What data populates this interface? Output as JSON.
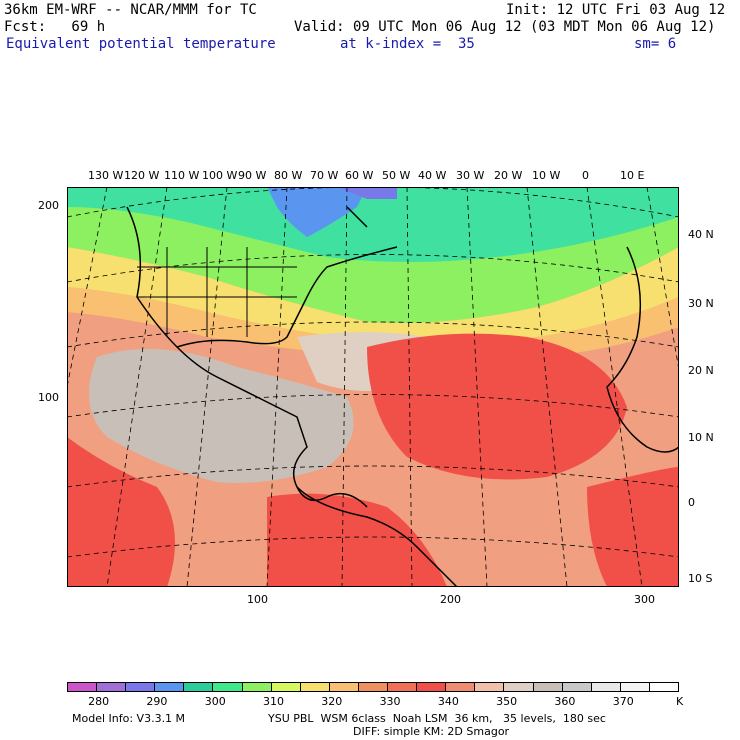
{
  "header": {
    "left_line1": "36km EM-WRF -- NCAR/MMM for TC",
    "left_line2": "Fcst:   69 h",
    "right_line1": "Init: 12 UTC Fri 03 Aug 12",
    "right_line2": "Valid: 09 UTC Mon 06 Aug 12 (03 MDT Mon 06 Aug 12)",
    "field_name": "Equivalent potential temperature",
    "level": "at k-index =  35",
    "smoothing": "sm= 6"
  },
  "map": {
    "top_lon_labels": [
      "130 W",
      "120 W",
      "110 W",
      "100 W",
      "90 W",
      "80 W",
      "70 W",
      "60 W",
      "50 W",
      "40 W",
      "30 W",
      "20 W",
      "10 W",
      "0",
      "10 E"
    ],
    "right_lat_labels": [
      "40 N",
      "30 N",
      "20 N",
      "10 N",
      "0",
      "10 S"
    ],
    "left_y_labels": [
      "200",
      "100"
    ],
    "bottom_x_labels": [
      "100",
      "200",
      "300"
    ]
  },
  "colorbar": {
    "unit": "K",
    "labels": [
      "280",
      "290",
      "300",
      "310",
      "320",
      "330",
      "340",
      "350",
      "360",
      "370"
    ],
    "colors": [
      "#cc55cc",
      "#a070d8",
      "#7878e8",
      "#5a96f0",
      "#2ecc9c",
      "#40e88c",
      "#8cf060",
      "#d8f860",
      "#f8e070",
      "#f8c070",
      "#f09060",
      "#f07058",
      "#f05048",
      "#f08c70",
      "#f0c0a8",
      "#e0d0c4",
      "#c8c0b8",
      "#c8c8c8",
      "#e8e8e8",
      "#f4f4f4",
      "#ffffff"
    ]
  },
  "footer": {
    "model_info": "Model Info: V3.3.1 M",
    "physics_line1": "YSU PBL  WSM 6class  Noah LSM  36 km,   35 levels,  180 sec",
    "physics_line2": "DIFF: simple KM: 2D Smagor"
  }
}
